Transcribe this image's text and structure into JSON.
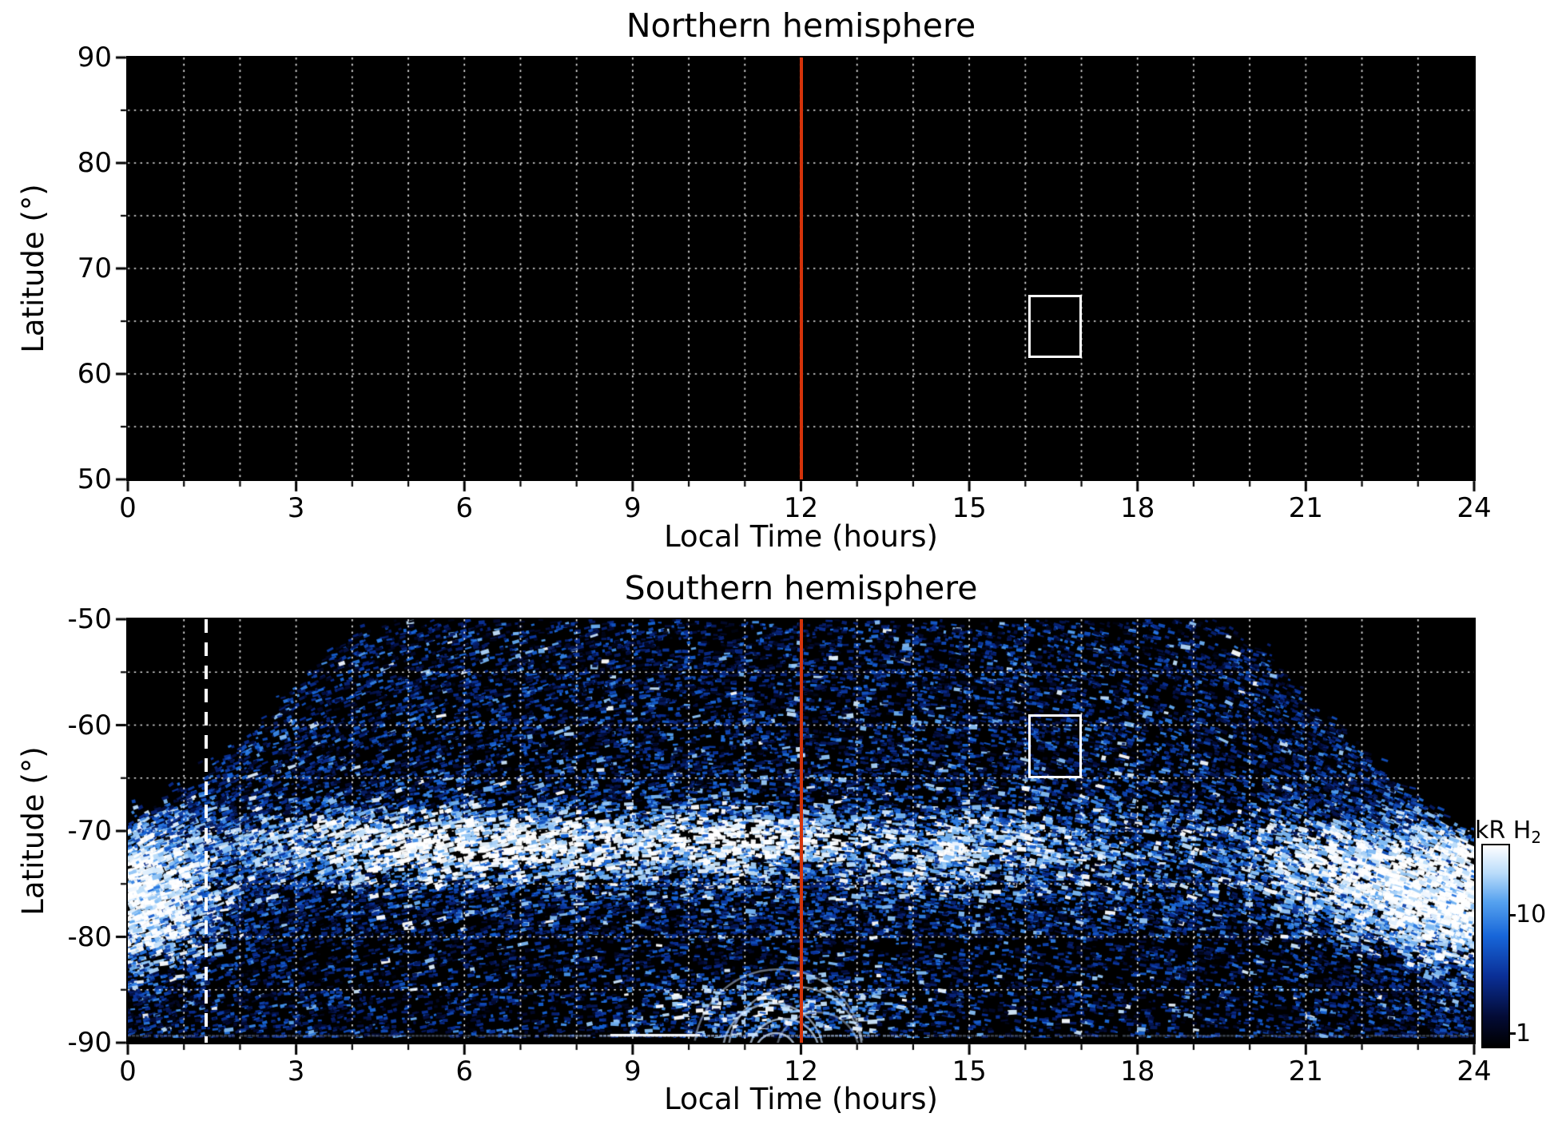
{
  "chart_data": {
    "type": "heatmap",
    "panels": [
      {
        "title": "Northern hemisphere",
        "xlabel": "Local Time (hours)",
        "ylabel": "Latitude (°)",
        "x_range": [
          0,
          24
        ],
        "x_ticks": [
          0,
          3,
          6,
          9,
          12,
          15,
          18,
          21,
          24
        ],
        "y_range": [
          50,
          90
        ],
        "y_ticks": [
          90,
          80,
          70,
          60,
          50
        ],
        "grid_x_step": 1,
        "grid_y_step": 5,
        "grid_style": "white dotted",
        "data": "no emission data (all black)",
        "annotations": [
          {
            "name": "noon-meridian-line",
            "type": "vline",
            "x": 12,
            "color": "#d5330a",
            "style": "solid"
          },
          {
            "name": "highlight-region-box",
            "type": "rect",
            "x": [
              16.05,
              17.0
            ],
            "y": [
              67.5,
              61.5
            ],
            "color": "#ffffff"
          }
        ]
      },
      {
        "title": "Southern hemisphere",
        "xlabel": "Local Time (hours)",
        "ylabel": "Latitude (°)",
        "x_range": [
          0,
          24
        ],
        "x_ticks": [
          0,
          3,
          6,
          9,
          12,
          15,
          18,
          21,
          24
        ],
        "y_range": [
          -90,
          -50
        ],
        "y_ticks": [
          -50,
          -60,
          -70,
          -80,
          -90
        ],
        "grid_x_step": 1,
        "grid_y_step": 5,
        "grid_style": "white dotted",
        "data": "speckled H2 auroral emission map from satellite swaths; bright auroral oval near -70° latitude",
        "value_label": "kR H2",
        "value_scale": "log",
        "value_range": [
          1,
          30
        ],
        "diffuse_background_kR": 1.8,
        "coverage_boundary": [
          [
            0,
            -69
          ],
          [
            1,
            -66.5
          ],
          [
            2,
            -62
          ],
          [
            3,
            -56.5
          ],
          [
            4,
            -51.5
          ],
          [
            4.6,
            -50
          ],
          [
            19.4,
            -50
          ],
          [
            20,
            -52.5
          ],
          [
            21,
            -57.5
          ],
          [
            22,
            -62.5
          ],
          [
            23,
            -67.5
          ],
          [
            24,
            -71
          ]
        ],
        "bright_features": [
          {
            "name": "dawn-main-arc",
            "h": 6.0,
            "h_sigma": 1.8,
            "lat": -71.3,
            "lat_sigma": 1.5,
            "peak_kR": 30
          },
          {
            "name": "prenoon-arc",
            "h": 10.6,
            "h_sigma": 1.1,
            "lat": -71.0,
            "lat_sigma": 1.3,
            "peak_kR": 26
          },
          {
            "name": "diffuse-oval",
            "h": 12.0,
            "h_sigma": 9.0,
            "lat": -71.8,
            "lat_sigma": 3.2,
            "peak_kR": 4
          },
          {
            "name": "afternoon-patch",
            "h": 15.0,
            "h_sigma": 1.2,
            "lat": -71.5,
            "lat_sigma": 2.0,
            "peak_kR": 6
          },
          {
            "name": "dusk-patch",
            "h": 21.3,
            "h_sigma": 0.8,
            "lat": -72.5,
            "lat_sigma": 1.8,
            "peak_kR": 10
          },
          {
            "name": "night-arc",
            "h": 22.7,
            "h_sigma": 1.0,
            "lat": -75.0,
            "lat_sigma": 2.4,
            "peak_kR": 26
          },
          {
            "name": "late-night-arc",
            "h": 23.8,
            "h_sigma": 0.7,
            "lat": -77.5,
            "lat_sigma": 2.8,
            "peak_kR": 22
          },
          {
            "name": "early-morning-edge",
            "h": 0.3,
            "h_sigma": 0.7,
            "lat": -75.5,
            "lat_sigma": 3.5,
            "peak_kR": 12
          },
          {
            "name": "polar-arcs",
            "h": 11.6,
            "h_sigma": 1.4,
            "lat": -87.0,
            "lat_sigma": 1.8,
            "peak_kR": 7
          }
        ],
        "annotations": [
          {
            "name": "noon-meridian-line",
            "type": "vline",
            "x": 12,
            "color": "#d5330a",
            "style": "solid"
          },
          {
            "name": "reference-dashed-line",
            "type": "vline",
            "x": 1.4,
            "color": "#ffffff",
            "style": "dashed"
          },
          {
            "name": "highlight-region-box",
            "type": "rect",
            "x": [
              16.05,
              17.0
            ],
            "y": [
              -59.0,
              -65.0
            ],
            "color": "#ffffff"
          }
        ]
      }
    ],
    "colorbar": {
      "label": "kR H2",
      "label_main": "kR H",
      "label_sub": "2",
      "scale": "log",
      "range": [
        0.8,
        40
      ],
      "ticks": [
        10,
        1
      ],
      "tick_labels": [
        "10",
        "1"
      ],
      "stops": [
        {
          "t": 0.0,
          "color": "#000000"
        },
        {
          "t": 0.15,
          "color": "#030b36"
        },
        {
          "t": 0.35,
          "color": "#0a2f96"
        },
        {
          "t": 0.55,
          "color": "#1766d9"
        },
        {
          "t": 0.72,
          "color": "#56a2ef"
        },
        {
          "t": 0.86,
          "color": "#b8dbfa"
        },
        {
          "t": 1.0,
          "color": "#ffffff"
        }
      ]
    }
  }
}
